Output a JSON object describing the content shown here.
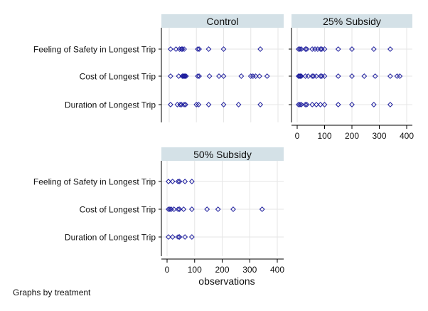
{
  "chart_data": {
    "type": "scatter",
    "panels": [
      {
        "title": "Control",
        "categories": [
          "Feeling of Safety in Longest Trip",
          "Cost of Longest Trip",
          "Duration of Longest Trip"
        ],
        "values": [
          [
            5,
            25,
            38,
            45,
            48,
            55,
            105,
            110,
            145,
            200,
            335
          ],
          [
            5,
            35,
            48,
            52,
            55,
            58,
            62,
            105,
            110,
            148,
            183,
            200,
            265,
            300,
            308,
            318,
            332,
            360
          ],
          [
            5,
            30,
            40,
            45,
            55,
            60,
            100,
            108,
            145,
            200,
            255,
            335
          ]
        ]
      },
      {
        "title": "25% Subsidy",
        "categories": [
          "Feeling of Safety in Longest Trip",
          "Cost of Longest Trip",
          "Duration of Longest Trip"
        ],
        "values": [
          [
            5,
            10,
            15,
            30,
            35,
            55,
            65,
            75,
            85,
            90,
            100,
            150,
            200,
            280,
            340
          ],
          [
            5,
            8,
            12,
            15,
            30,
            40,
            55,
            60,
            70,
            85,
            90,
            100,
            150,
            200,
            245,
            285,
            340,
            365,
            375
          ],
          [
            5,
            10,
            15,
            30,
            35,
            55,
            70,
            85,
            100,
            150,
            200,
            280,
            340
          ]
        ]
      },
      {
        "title": "50% Subsidy",
        "categories": [
          "Feeling of Safety in Longest Trip",
          "Cost of Longest Trip",
          "Duration of Longest Trip"
        ],
        "values": [
          [
            5,
            20,
            40,
            45,
            65,
            90
          ],
          [
            5,
            10,
            15,
            25,
            40,
            45,
            60,
            90,
            145,
            185,
            240,
            345
          ],
          [
            5,
            20,
            40,
            45,
            65,
            90
          ]
        ]
      }
    ],
    "xlim": [
      0,
      400
    ],
    "xticks": [
      0,
      100,
      200,
      300,
      400
    ],
    "xlabel": "observations",
    "note": "Graphs by treatment",
    "colors": {
      "marker": "#1a1a9c",
      "header_bg": "#d4e1e7",
      "grid": "#e6e6e6",
      "axis": "#000000"
    },
    "marker": "hollow-diamond"
  }
}
